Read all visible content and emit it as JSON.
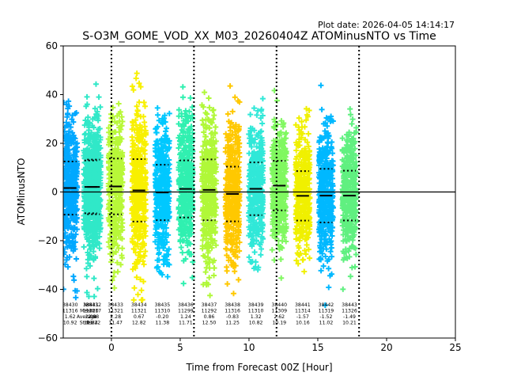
{
  "plot_date": "Plot date: 2026-04-05 14:14:17",
  "chart_data": {
    "type": "scatter",
    "title": "S-O3M_GOME_VOD_XX_M03_20260404Z ATOMinusNTO vs Time",
    "xlabel": "Time from Forecast 00Z [Hour]",
    "ylabel": "ATOMinusNTO",
    "xlim": [
      -3.5,
      25
    ],
    "ylim": [
      -60,
      60
    ],
    "xticks": [
      0,
      5,
      10,
      15,
      20,
      25
    ],
    "yticks": [
      -60,
      -40,
      -20,
      0,
      20,
      40,
      60
    ],
    "grid": false,
    "zero_line": 0,
    "vlines": [
      0,
      6,
      12,
      18
    ],
    "stats_header": [
      "Nr",
      "Mean",
      "Average",
      "Stdev"
    ],
    "orbits": [
      {
        "orbit": "38430",
        "x": -3.0,
        "n": "11316",
        "mean": "1.62",
        "stdev": "10.92",
        "color": "#00a8ff"
      },
      {
        "orbit": "38431",
        "x": -1.5,
        "n": "11320",
        "mean": "2.08",
        "stdev": "10.84",
        "color": "#30e8c8"
      },
      {
        "orbit": "38432",
        "x": -1.3,
        "n": "11317",
        "mean": "2.08",
        "stdev": "11.22",
        "color": "#30e8c8"
      },
      {
        "orbit": "38433",
        "x": 0.3,
        "n": "11321",
        "mean": "2.28",
        "stdev": "11.47",
        "color": "#b8f838"
      },
      {
        "orbit": "38434",
        "x": 2.0,
        "n": "11321",
        "mean": "0.67",
        "stdev": "12.82",
        "color": "#f8f000"
      },
      {
        "orbit": "38435",
        "x": 3.7,
        "n": "11310",
        "mean": "-0.20",
        "stdev": "11.38",
        "color": "#00c8ff"
      },
      {
        "orbit": "38436",
        "x": 5.4,
        "n": "11299",
        "mean": "1.24",
        "stdev": "11.71",
        "color": "#30f0b0"
      },
      {
        "orbit": "38437",
        "x": 7.1,
        "n": "11292",
        "mean": "0.86",
        "stdev": "12.50",
        "color": "#b0f838"
      },
      {
        "orbit": "38438",
        "x": 8.8,
        "n": "11316",
        "mean": "-0.83",
        "stdev": "11.25",
        "color": "#ffc800"
      },
      {
        "orbit": "38439",
        "x": 10.5,
        "n": "11310",
        "mean": "1.32",
        "stdev": "10.82",
        "color": "#30e8d8"
      },
      {
        "orbit": "38440",
        "x": 12.2,
        "n": "11309",
        "mean": "2.62",
        "stdev": "10.19",
        "color": "#80f860"
      },
      {
        "orbit": "38441",
        "x": 13.9,
        "n": "11314",
        "mean": "-1.57",
        "stdev": "10.16",
        "color": "#f0f000"
      },
      {
        "orbit": "38442",
        "x": 15.6,
        "n": "11319",
        "mean": "-1.52",
        "stdev": "11.02",
        "color": "#00b8ff"
      },
      {
        "orbit": "38443",
        "x": 17.3,
        "n": "11326",
        "mean": "-1.49",
        "stdev": "10.21",
        "color": "#60f080"
      }
    ]
  }
}
